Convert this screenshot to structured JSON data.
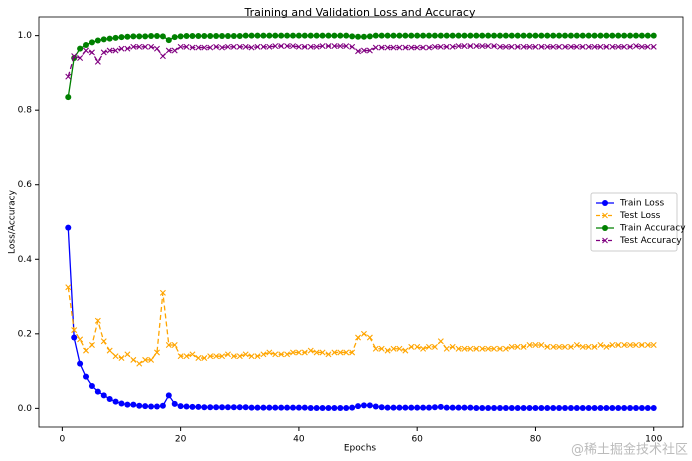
{
  "chart_data": {
    "type": "line",
    "title": "Training and Validation Loss and Accuracy",
    "x_label": "Epochs",
    "y_label": "Loss/Accuracy",
    "x": [
      1,
      2,
      3,
      4,
      5,
      6,
      7,
      8,
      9,
      10,
      11,
      12,
      13,
      14,
      15,
      16,
      17,
      18,
      19,
      20,
      21,
      22,
      23,
      24,
      25,
      26,
      27,
      28,
      29,
      30,
      31,
      32,
      33,
      34,
      35,
      36,
      37,
      38,
      39,
      40,
      41,
      42,
      43,
      44,
      45,
      46,
      47,
      48,
      49,
      50,
      51,
      52,
      53,
      54,
      55,
      56,
      57,
      58,
      59,
      60,
      61,
      62,
      63,
      64,
      65,
      66,
      67,
      68,
      69,
      70,
      71,
      72,
      73,
      74,
      75,
      76,
      77,
      78,
      79,
      80,
      81,
      82,
      83,
      84,
      85,
      86,
      87,
      88,
      89,
      90,
      91,
      92,
      93,
      94,
      95,
      96,
      97,
      98,
      99,
      100
    ],
    "series": [
      {
        "name": "Train Loss",
        "color": "#0000ff",
        "marker": "circle",
        "linestyle": "solid",
        "values": [
          0.485,
          0.19,
          0.12,
          0.085,
          0.06,
          0.045,
          0.035,
          0.025,
          0.018,
          0.013,
          0.01,
          0.01,
          0.007,
          0.006,
          0.005,
          0.005,
          0.007,
          0.035,
          0.012,
          0.006,
          0.005,
          0.004,
          0.004,
          0.003,
          0.003,
          0.003,
          0.003,
          0.003,
          0.003,
          0.003,
          0.003,
          0.002,
          0.002,
          0.002,
          0.002,
          0.002,
          0.002,
          0.002,
          0.002,
          0.002,
          0.002,
          0.001,
          0.001,
          0.001,
          0.001,
          0.001,
          0.001,
          0.001,
          0.002,
          0.006,
          0.008,
          0.008,
          0.005,
          0.003,
          0.002,
          0.002,
          0.002,
          0.002,
          0.002,
          0.002,
          0.002,
          0.002,
          0.003,
          0.004,
          0.002,
          0.002,
          0.002,
          0.002,
          0.002,
          0.001,
          0.001,
          0.001,
          0.001,
          0.001,
          0.001,
          0.001,
          0.001,
          0.001,
          0.001,
          0.001,
          0.001,
          0.001,
          0.001,
          0.001,
          0.001,
          0.001,
          0.001,
          0.001,
          0.001,
          0.001,
          0.001,
          0.001,
          0.001,
          0.001,
          0.001,
          0.001,
          0.001,
          0.001,
          0.001,
          0.001
        ]
      },
      {
        "name": "Test Loss",
        "color": "#ffa500",
        "marker": "x",
        "linestyle": "dashed",
        "values": [
          0.325,
          0.21,
          0.185,
          0.155,
          0.17,
          0.235,
          0.18,
          0.155,
          0.14,
          0.135,
          0.145,
          0.13,
          0.12,
          0.13,
          0.13,
          0.15,
          0.31,
          0.17,
          0.17,
          0.14,
          0.14,
          0.145,
          0.135,
          0.135,
          0.14,
          0.14,
          0.14,
          0.145,
          0.14,
          0.14,
          0.145,
          0.14,
          0.14,
          0.145,
          0.15,
          0.145,
          0.145,
          0.145,
          0.15,
          0.15,
          0.15,
          0.155,
          0.15,
          0.15,
          0.145,
          0.15,
          0.15,
          0.15,
          0.15,
          0.19,
          0.2,
          0.19,
          0.16,
          0.16,
          0.155,
          0.16,
          0.16,
          0.155,
          0.165,
          0.165,
          0.16,
          0.165,
          0.165,
          0.18,
          0.16,
          0.165,
          0.16,
          0.16,
          0.16,
          0.16,
          0.16,
          0.16,
          0.16,
          0.16,
          0.16,
          0.165,
          0.165,
          0.165,
          0.17,
          0.17,
          0.17,
          0.165,
          0.165,
          0.165,
          0.165,
          0.165,
          0.17,
          0.165,
          0.165,
          0.165,
          0.17,
          0.165,
          0.17,
          0.17,
          0.17,
          0.17,
          0.17,
          0.17,
          0.17,
          0.17
        ]
      },
      {
        "name": "Train Accuracy",
        "color": "#008000",
        "marker": "circle",
        "linestyle": "solid",
        "values": [
          0.835,
          0.94,
          0.965,
          0.975,
          0.982,
          0.987,
          0.99,
          0.992,
          0.994,
          0.996,
          0.997,
          0.998,
          0.998,
          0.998,
          0.999,
          0.999,
          0.998,
          0.988,
          0.996,
          0.998,
          0.999,
          0.999,
          0.999,
          0.999,
          0.999,
          0.999,
          0.999,
          0.999,
          0.999,
          0.999,
          1,
          1,
          1,
          1,
          1,
          1,
          1,
          1,
          1,
          1,
          1,
          1,
          1,
          1,
          1,
          1,
          1,
          1,
          0.998,
          0.997,
          0.997,
          0.998,
          1,
          1,
          1,
          1,
          1,
          1,
          1,
          1,
          1,
          1,
          1,
          1,
          1,
          1,
          1,
          1,
          1,
          1,
          1,
          1,
          1,
          1,
          1,
          1,
          1,
          1,
          1,
          1,
          1,
          1,
          1,
          1,
          1,
          1,
          1,
          1,
          1,
          1,
          1,
          1,
          1,
          1,
          1,
          1,
          1,
          1,
          1,
          1
        ]
      },
      {
        "name": "Test Accuracy",
        "color": "#800080",
        "marker": "x",
        "linestyle": "dashed",
        "values": [
          0.89,
          0.945,
          0.94,
          0.96,
          0.955,
          0.93,
          0.955,
          0.96,
          0.96,
          0.965,
          0.965,
          0.97,
          0.97,
          0.97,
          0.97,
          0.965,
          0.945,
          0.96,
          0.96,
          0.97,
          0.97,
          0.968,
          0.968,
          0.968,
          0.968,
          0.97,
          0.968,
          0.97,
          0.97,
          0.97,
          0.97,
          0.968,
          0.97,
          0.97,
          0.97,
          0.972,
          0.972,
          0.972,
          0.972,
          0.97,
          0.97,
          0.97,
          0.97,
          0.972,
          0.972,
          0.972,
          0.972,
          0.972,
          0.97,
          0.958,
          0.96,
          0.96,
          0.968,
          0.968,
          0.968,
          0.968,
          0.968,
          0.968,
          0.968,
          0.968,
          0.968,
          0.968,
          0.97,
          0.97,
          0.97,
          0.97,
          0.972,
          0.972,
          0.972,
          0.972,
          0.972,
          0.972,
          0.972,
          0.97,
          0.97,
          0.97,
          0.97,
          0.97,
          0.97,
          0.97,
          0.97,
          0.97,
          0.97,
          0.97,
          0.97,
          0.97,
          0.97,
          0.97,
          0.97,
          0.97,
          0.97,
          0.97,
          0.97,
          0.97,
          0.97,
          0.97,
          0.972,
          0.97,
          0.97,
          0.97
        ]
      }
    ],
    "xlim": [
      -3.95,
      104.95
    ],
    "xticks": [
      0,
      20,
      40,
      60,
      80,
      100
    ],
    "ylim": [
      -0.05,
      1.05
    ],
    "yticks": [
      {
        "value": 0,
        "label": "0.0"
      },
      0.2,
      0.4,
      0.6,
      0.8,
      {
        "value": 1,
        "label": "1.0"
      }
    ],
    "grid": false,
    "legend": "center right",
    "watermark": "@稀土掘金技术社区"
  }
}
